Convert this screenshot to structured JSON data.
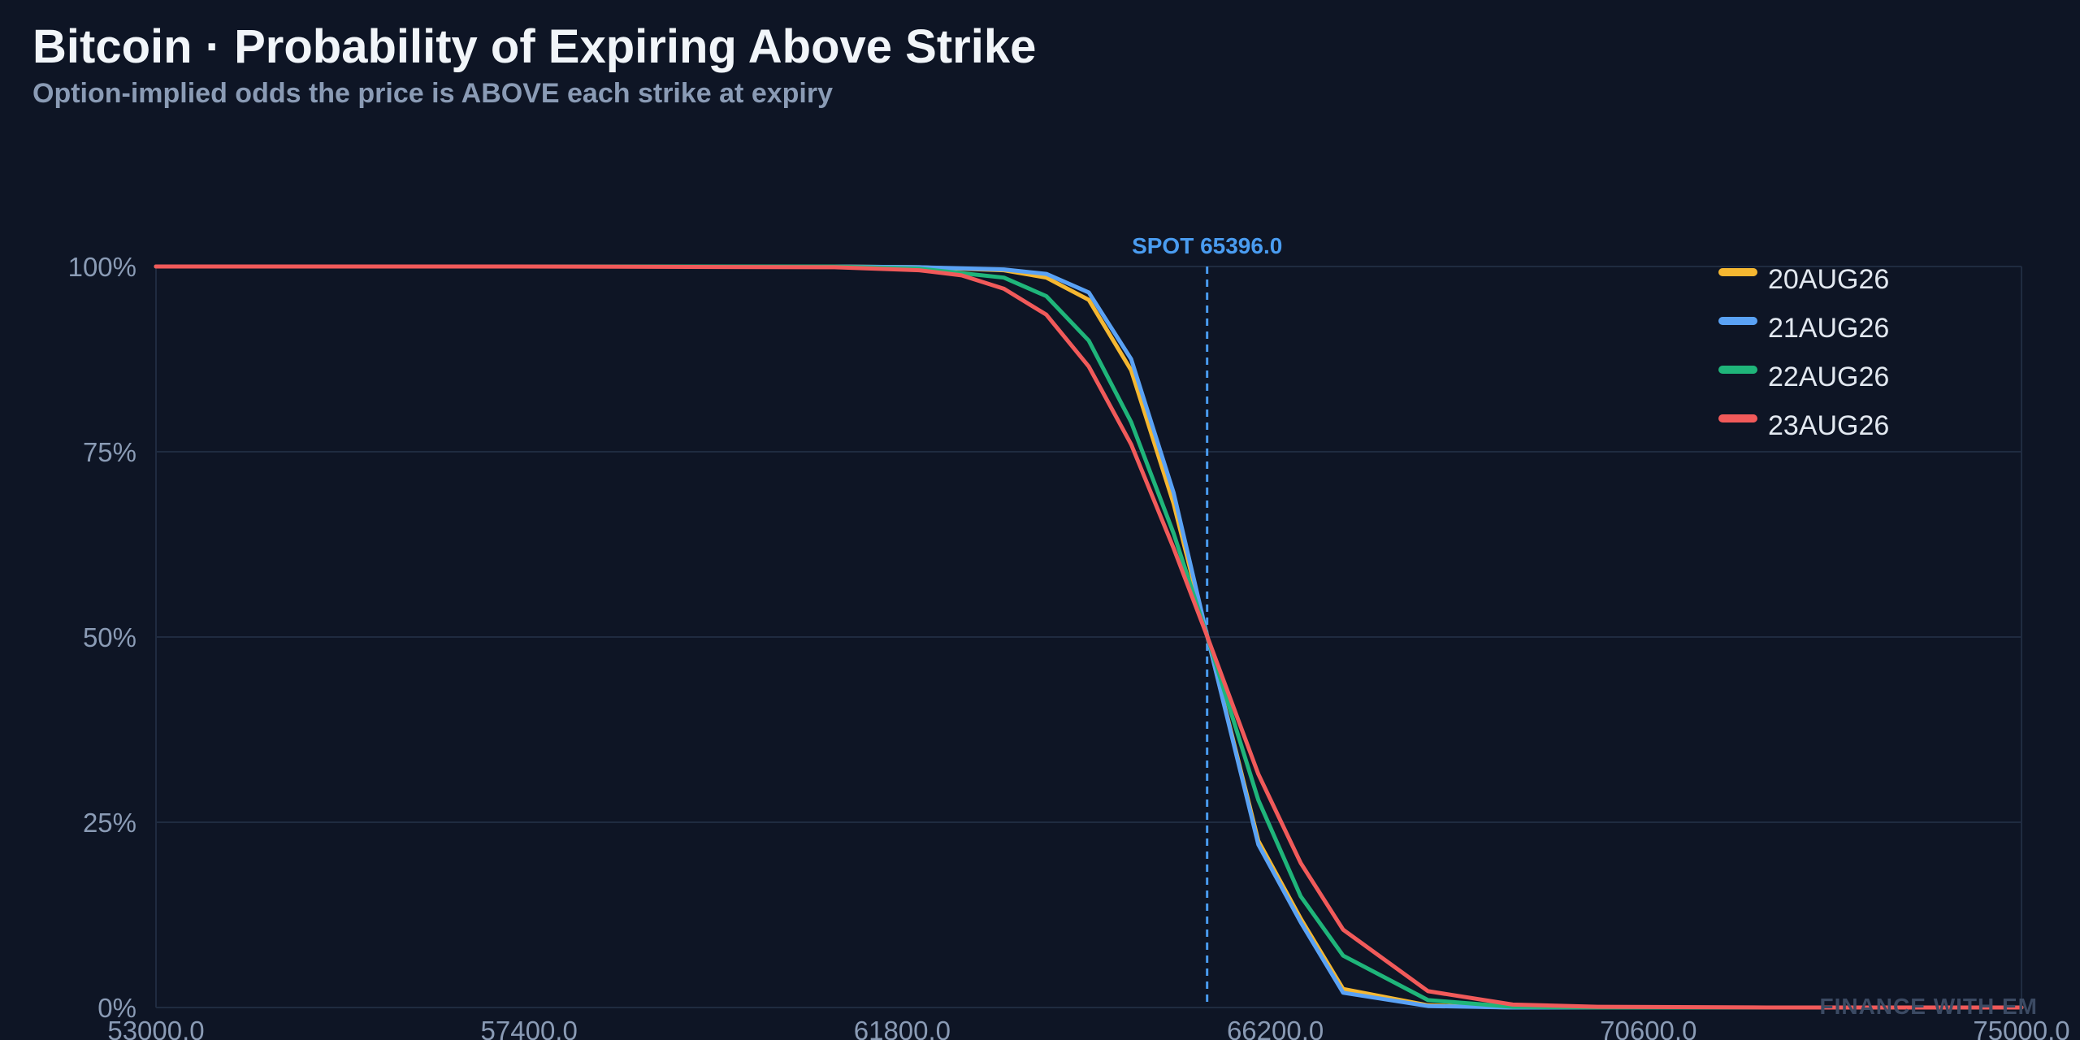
{
  "header": {
    "title": "Bitcoin · Probability of Expiring Above Strike",
    "subtitle": "Option-implied odds the price is ABOVE each strike at expiry"
  },
  "watermark": "FINANCE WITH EM",
  "colors": {
    "background": "#0e1525",
    "grid": "#1f2b40",
    "spot": "#4a9cf0"
  },
  "chart_data": {
    "type": "line",
    "xlim": [
      53000,
      75000
    ],
    "ylim": [
      0,
      100
    ],
    "xticks": [
      53000,
      57400,
      61800,
      66200,
      70600,
      75000
    ],
    "xtick_labels": [
      "53000.0",
      "57400.0",
      "61800.0",
      "66200.0",
      "70600.0",
      "75000.0"
    ],
    "yticks": [
      0,
      25,
      50,
      75,
      100
    ],
    "ytick_labels": [
      "0%",
      "25%",
      "50%",
      "75%",
      "100%"
    ],
    "grid": true,
    "legend_position": "top-right",
    "spot": {
      "value": 65396.0,
      "label": "SPOT 65396.0"
    },
    "series": [
      {
        "name": "20AUG26",
        "color": "#f5b731",
        "x": [
          53000,
          61000,
          62000,
          63000,
          63500,
          64000,
          64500,
          65000,
          65400,
          66000,
          66500,
          67000,
          68000,
          69000,
          70000,
          72000,
          75000
        ],
        "y": [
          100,
          100,
          99.9,
          99.5,
          98.5,
          95.5,
          86,
          68,
          50,
          22.5,
          12,
          2.5,
          0.3,
          0,
          0,
          0,
          0
        ]
      },
      {
        "name": "21AUG26",
        "color": "#5aa2f5",
        "x": [
          53000,
          61000,
          62000,
          63000,
          63500,
          64000,
          64500,
          65000,
          65400,
          66000,
          66500,
          67000,
          68000,
          69000,
          70000,
          72000,
          75000
        ],
        "y": [
          100,
          100,
          99.9,
          99.6,
          99,
          96.5,
          87.5,
          69.5,
          50,
          22,
          11.5,
          2,
          0.2,
          0,
          0,
          0,
          0
        ]
      },
      {
        "name": "22AUG26",
        "color": "#1fb57a",
        "x": [
          53000,
          61000,
          62000,
          63000,
          63500,
          64000,
          64500,
          65000,
          65400,
          66000,
          66500,
          67000,
          68000,
          69000,
          70000,
          72000,
          75000
        ],
        "y": [
          100,
          100,
          99.7,
          98.5,
          96,
          90,
          79,
          64,
          50,
          28,
          15,
          7,
          1,
          0.1,
          0,
          0,
          0
        ]
      },
      {
        "name": "23AUG26",
        "color": "#f15a5a",
        "x": [
          53000,
          57200,
          61000,
          62000,
          62500,
          63000,
          63500,
          64000,
          64500,
          65000,
          65400,
          66000,
          66500,
          67000,
          68000,
          69000,
          70000,
          72000,
          75000
        ],
        "y": [
          100,
          100,
          99.9,
          99.5,
          98.8,
          97,
          93.5,
          86.5,
          76,
          62,
          50,
          31.5,
          19.5,
          10.5,
          2.2,
          0.4,
          0.1,
          0,
          0
        ]
      }
    ]
  }
}
